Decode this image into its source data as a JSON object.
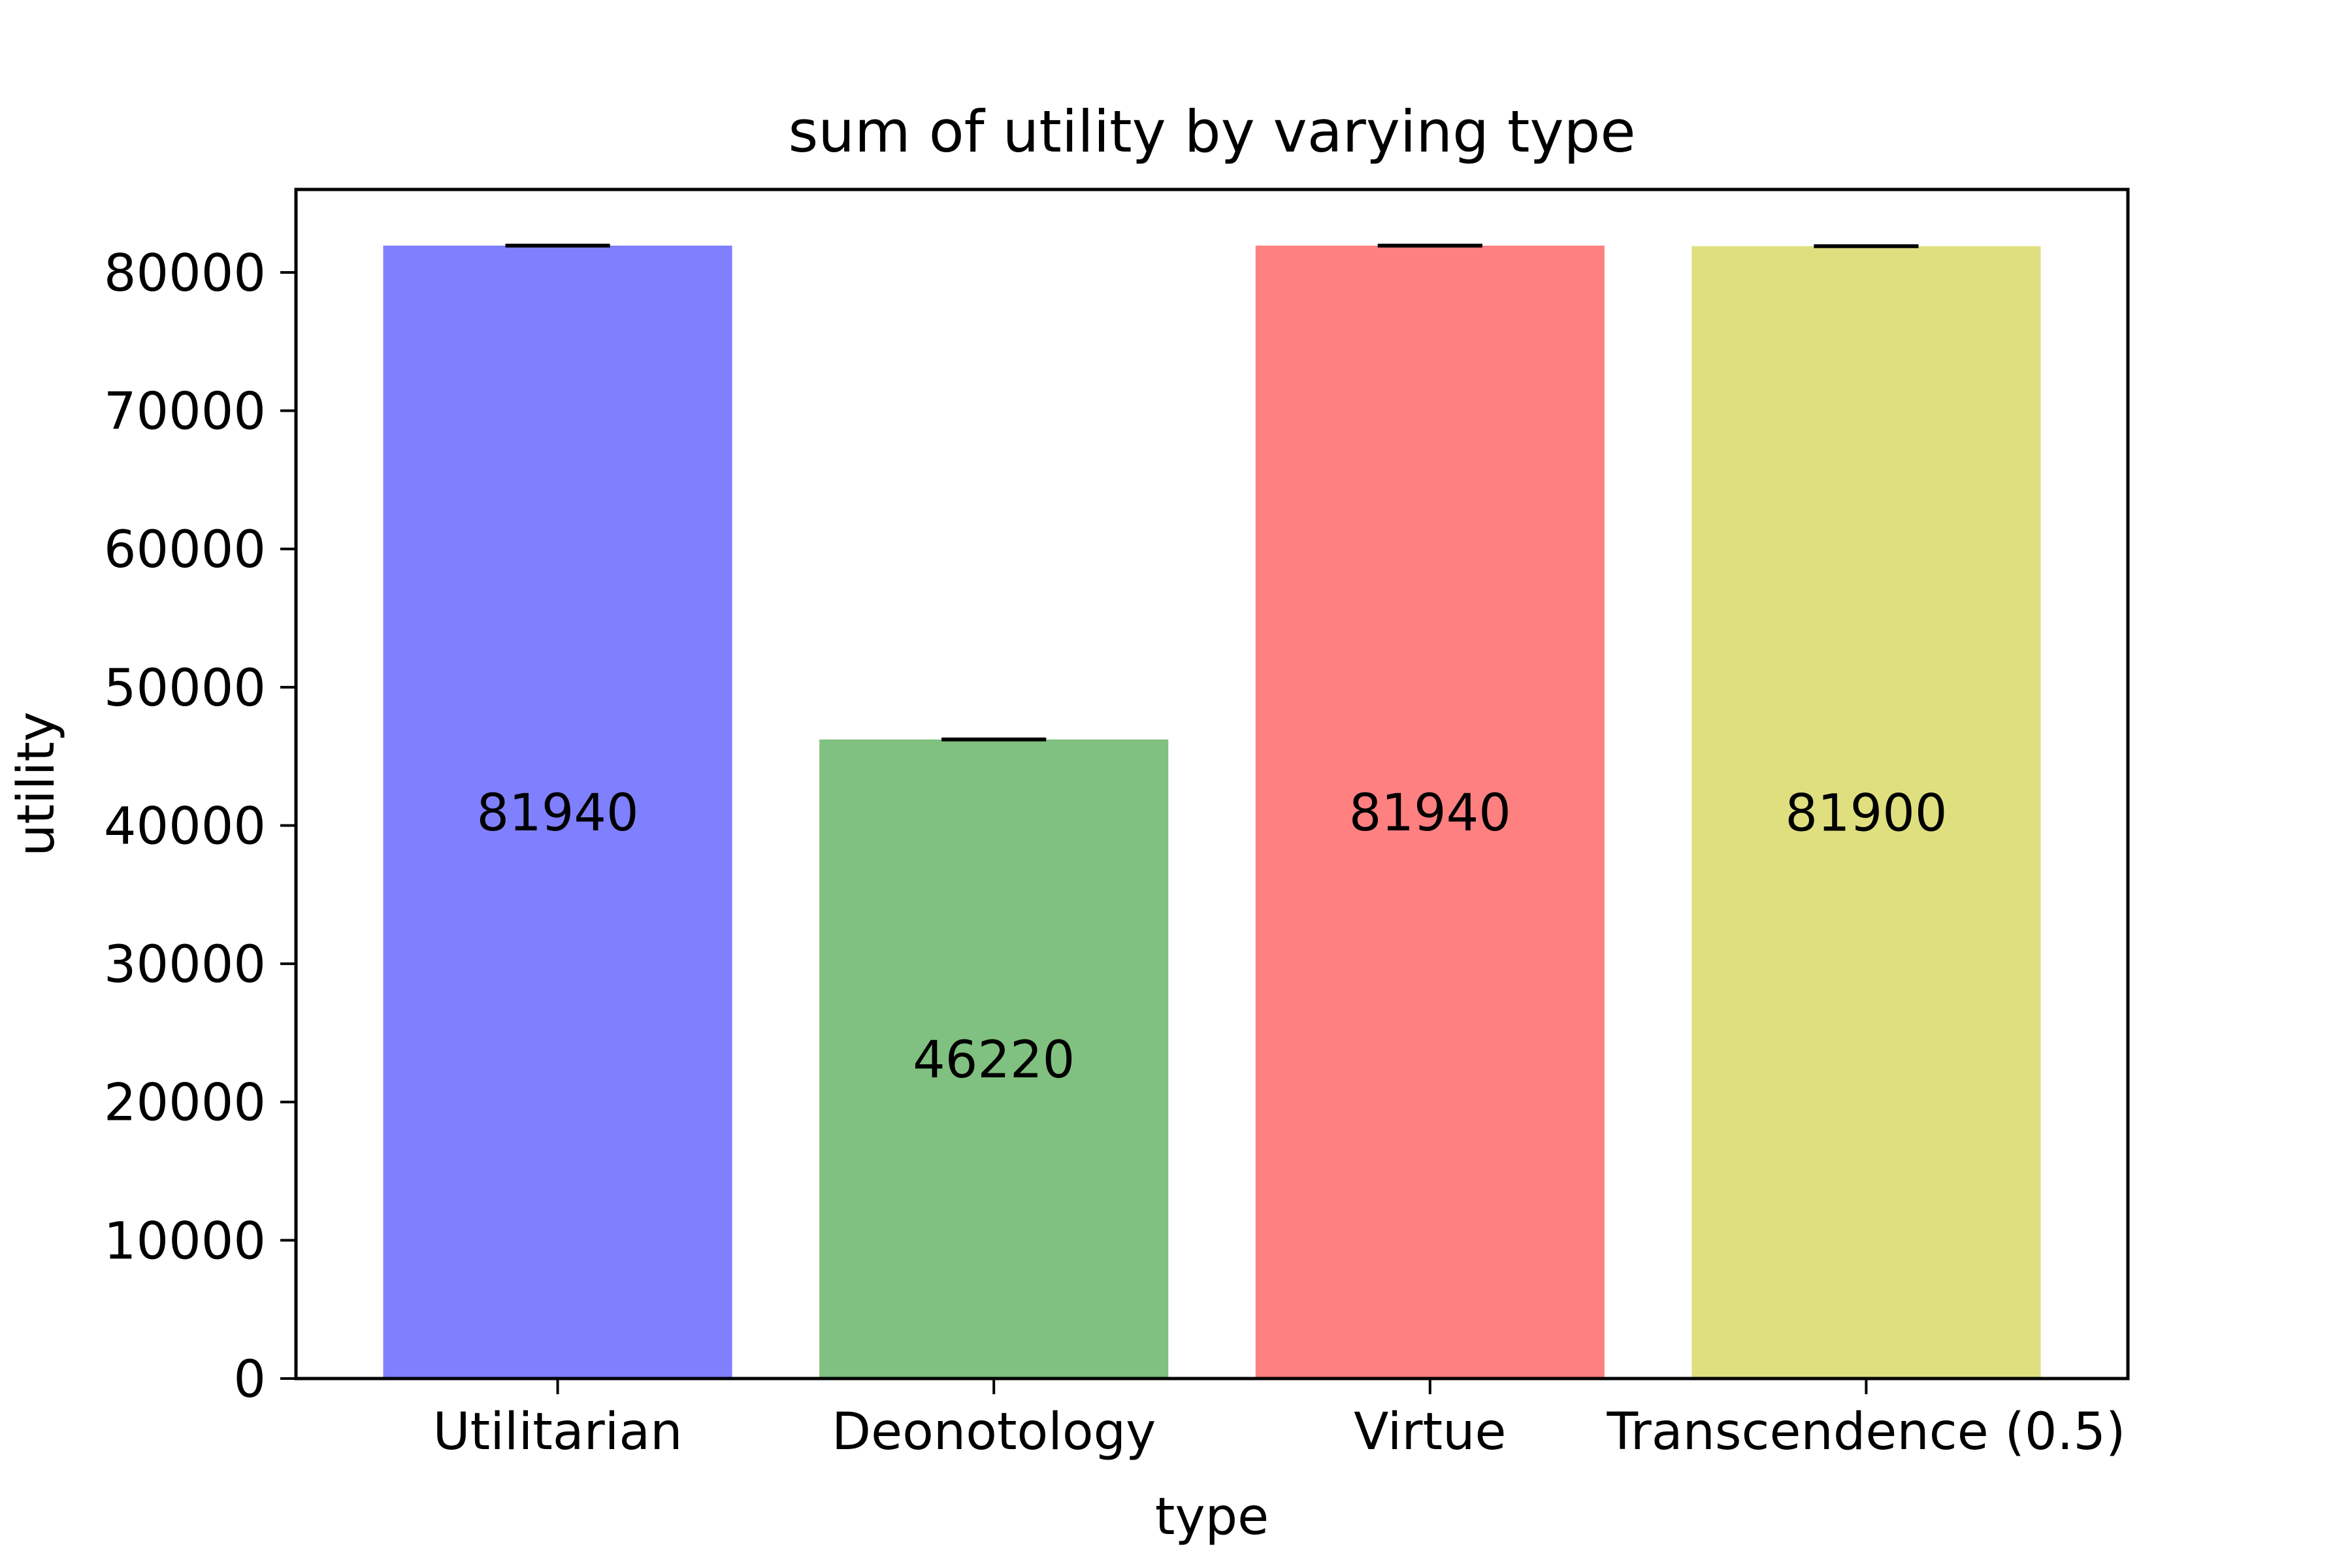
{
  "chart_data": {
    "type": "bar",
    "title": "sum of utility by varying type",
    "xlabel": "type",
    "ylabel": "utility",
    "categories": [
      "Utilitarian",
      "Deonotology",
      "Virtue",
      "Transcendence (0.5)"
    ],
    "values": [
      81940,
      46220,
      81940,
      81900
    ],
    "value_labels": [
      "81940",
      "46220",
      "81940",
      "81900"
    ],
    "error": [
      20,
      20,
      20,
      20
    ],
    "colors": [
      "#8080ff",
      "#80c080",
      "#ff8080",
      "#dfdf80"
    ],
    "ylim": [
      0,
      86000
    ],
    "yticks": [
      0,
      10000,
      20000,
      30000,
      40000,
      50000,
      60000,
      70000,
      80000
    ],
    "grid": false,
    "legend": "none"
  }
}
